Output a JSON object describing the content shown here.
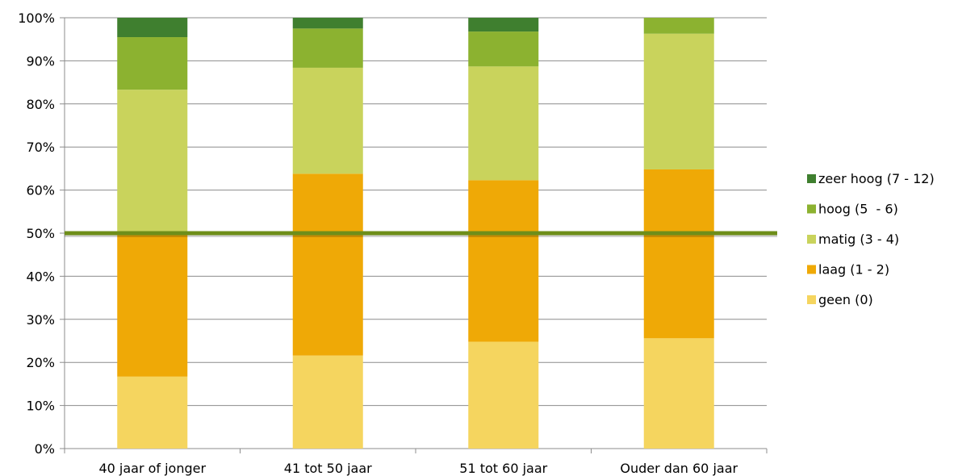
{
  "chart_data": {
    "type": "bar",
    "stacked": true,
    "categories": [
      "40 jaar of jonger",
      "41 tot 50 jaar",
      "51 tot 60 jaar",
      "Ouder dan 60 jaar"
    ],
    "y_ticks": [
      "0%",
      "10%",
      "20%",
      "30%",
      "40%",
      "50%",
      "60%",
      "70%",
      "80%",
      "90%",
      "100%"
    ],
    "ylim": [
      0,
      100
    ],
    "grid": true,
    "legend_position": "right",
    "series": [
      {
        "name": "geen (0)",
        "color": "#F5D55F",
        "values": [
          16.7,
          21.6,
          24.8,
          25.6
        ]
      },
      {
        "name": "laag (1 - 2)",
        "color": "#EFA906",
        "values": [
          33.3,
          42.2,
          37.5,
          39.2
        ]
      },
      {
        "name": "matig (3 - 4)",
        "color": "#C9D35C",
        "values": [
          33.3,
          24.6,
          26.4,
          31.5
        ]
      },
      {
        "name": "hoog (5  - 6)",
        "color": "#8CB230",
        "values": [
          12.2,
          9.1,
          8.1,
          3.7
        ]
      },
      {
        "name": "zeer hoog (7 - 12)",
        "color": "#3F7F2F",
        "values": [
          4.5,
          2.5,
          3.2,
          0
        ]
      }
    ],
    "reference_line": {
      "y": 50,
      "color": "#6E8E1A"
    }
  }
}
